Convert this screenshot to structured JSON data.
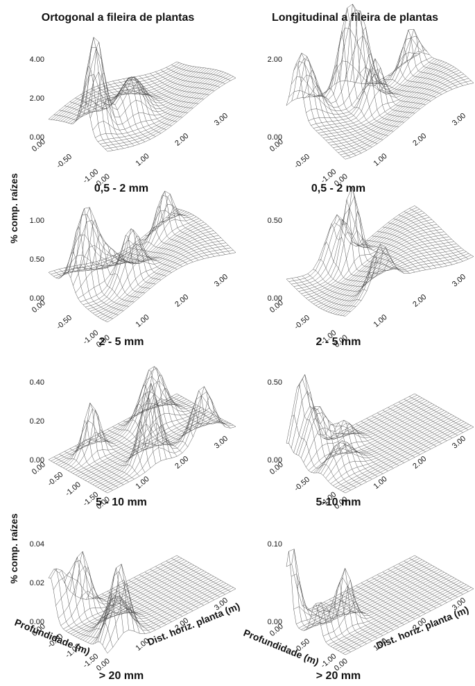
{
  "column_titles": [
    "Ortogonal a fileira de plantas",
    "Longitudinal a fileira de plantas"
  ],
  "z_axis_label": "% comp. raízes",
  "depth_axis_label": "Profundidade (m)",
  "distance_axis_label": "Dist. horiz. planta (m)",
  "panels": [
    {
      "z_ticks": [
        "4.00",
        "2.00",
        "0.00"
      ],
      "depth_ticks": [
        "0.00",
        "-0.50",
        "-1.00"
      ],
      "distance_ticks": [
        "0.00",
        "1.00",
        "2.00",
        "3.00"
      ],
      "caption": "0,5 - 2 mm"
    },
    {
      "z_ticks": [
        "2.00",
        "0.00"
      ],
      "depth_ticks": [
        "0.00",
        "-0.50",
        "-1.00"
      ],
      "distance_ticks": [
        "0.00",
        "1.00",
        "2.00",
        "3.00"
      ],
      "caption": "0,5 - 2 mm"
    },
    {
      "z_ticks": [
        "1.00",
        "0.50",
        "0.00"
      ],
      "depth_ticks": [
        "0.00",
        "-0.50",
        "-1.00"
      ],
      "distance_ticks": [
        "0.00",
        "1.00",
        "2.00",
        "3.00"
      ],
      "caption": "2 - 5 mm"
    },
    {
      "z_ticks": [
        "0.50",
        "0.00"
      ],
      "depth_ticks": [
        "0.00",
        "-0.50",
        "-1.00"
      ],
      "distance_ticks": [
        "0.00",
        "1.00",
        "2.00",
        "3.00"
      ],
      "caption": "2 - 5 mm"
    },
    {
      "z_ticks": [
        "0.40",
        "0.20",
        "0.00"
      ],
      "depth_ticks": [
        "0.00",
        "-0.50",
        "-1.00",
        "-1.50"
      ],
      "distance_ticks": [
        "0.00",
        "1.00",
        "2.00",
        "3.00"
      ],
      "caption": "5 - 10 mm"
    },
    {
      "z_ticks": [
        "0.50",
        "0.00"
      ],
      "depth_ticks": [
        "0.00",
        "-0.50",
        "-1.00"
      ],
      "distance_ticks": [
        "0.00",
        "1.00",
        "2.00",
        "3.00"
      ],
      "caption": "5-10 mm"
    },
    {
      "z_ticks": [
        "0.04",
        "0.02",
        "0.00"
      ],
      "depth_ticks": [
        "0.00",
        "-0.50",
        "-1.00",
        "-1.50"
      ],
      "distance_ticks": [
        "0.00",
        "1.00",
        "2.00",
        "3.00"
      ],
      "caption": "> 20 mm"
    },
    {
      "z_ticks": [
        "0.10",
        "0.00"
      ],
      "depth_ticks": [
        "0.00",
        "-0.50",
        "-1.00"
      ],
      "distance_ticks": [
        "0.00",
        "1.00",
        "2.00",
        "3.00"
      ],
      "caption": "> 20 mm"
    }
  ]
}
